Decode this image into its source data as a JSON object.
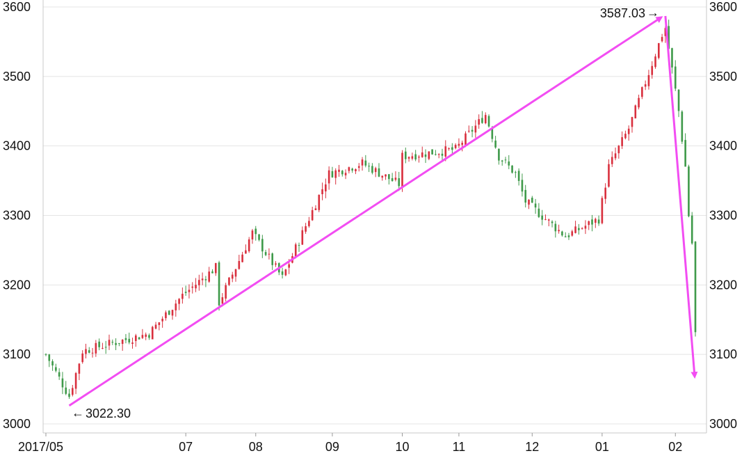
{
  "chart_data": {
    "type": "candlestick",
    "x_labels": [
      "2017/05",
      "07",
      "08",
      "09",
      "10",
      "11",
      "12",
      "01",
      "02"
    ],
    "y_ticks": [
      3000,
      3100,
      3200,
      3300,
      3400,
      3500,
      3600
    ],
    "ylim": [
      2995,
      3605
    ],
    "grid": true,
    "colors": {
      "up": "#d9303e",
      "down": "#3f9a4a",
      "trend": "#f24df2"
    },
    "annotations": {
      "low_label": "3022.30",
      "high_label": "3587.03"
    },
    "trend_points": [
      {
        "date": "2017-05-11",
        "value": 3022.3
      },
      {
        "date": "2018-01-29",
        "value": 3587.03
      },
      {
        "date": "2018-02-09",
        "value": 3062
      }
    ],
    "month_starts": [
      {
        "label": "2017/05",
        "date": "2017-05-02"
      },
      {
        "label": "07",
        "date": "2017-07-03"
      },
      {
        "label": "08",
        "date": "2017-08-01"
      },
      {
        "label": "09",
        "date": "2017-09-01"
      },
      {
        "label": "10",
        "date": "2017-10-09"
      },
      {
        "label": "11",
        "date": "2017-11-01"
      },
      {
        "label": "12",
        "date": "2017-12-01"
      },
      {
        "label": "01",
        "date": "2018-01-02"
      },
      {
        "label": "02",
        "date": "2018-02-01"
      }
    ],
    "key_closes": [
      {
        "date": "2017-05-02",
        "value": 3100
      },
      {
        "date": "2017-05-11",
        "value": 3040
      },
      {
        "date": "2017-05-17",
        "value": 3105
      },
      {
        "date": "2017-05-31",
        "value": 3115
      },
      {
        "date": "2017-06-16",
        "value": 3130
      },
      {
        "date": "2017-06-30",
        "value": 3185
      },
      {
        "date": "2017-07-14",
        "value": 3225
      },
      {
        "date": "2017-07-17",
        "value": 3175
      },
      {
        "date": "2017-07-31",
        "value": 3275
      },
      {
        "date": "2017-08-11",
        "value": 3210
      },
      {
        "date": "2017-08-31",
        "value": 3360
      },
      {
        "date": "2017-09-14",
        "value": 3375
      },
      {
        "date": "2017-09-29",
        "value": 3345
      },
      {
        "date": "2017-10-09",
        "value": 3385
      },
      {
        "date": "2017-10-31",
        "value": 3395
      },
      {
        "date": "2017-11-13",
        "value": 3445
      },
      {
        "date": "2017-11-17",
        "value": 3385
      },
      {
        "date": "2017-11-24",
        "value": 3360
      },
      {
        "date": "2017-11-29",
        "value": 3320
      },
      {
        "date": "2017-12-15",
        "value": 3270
      },
      {
        "date": "2017-12-29",
        "value": 3295
      },
      {
        "date": "2018-01-04",
        "value": 3370
      },
      {
        "date": "2018-01-12",
        "value": 3425
      },
      {
        "date": "2018-01-22",
        "value": 3505
      },
      {
        "date": "2018-01-26",
        "value": 3560
      },
      {
        "date": "2018-01-29",
        "value": 3570
      },
      {
        "date": "2018-02-01",
        "value": 3480
      },
      {
        "date": "2018-02-02",
        "value": 3450
      },
      {
        "date": "2018-02-06",
        "value": 3370
      },
      {
        "date": "2018-02-07",
        "value": 3300
      },
      {
        "date": "2018-02-08",
        "value": 3260
      },
      {
        "date": "2018-02-09",
        "value": 3130
      }
    ]
  }
}
